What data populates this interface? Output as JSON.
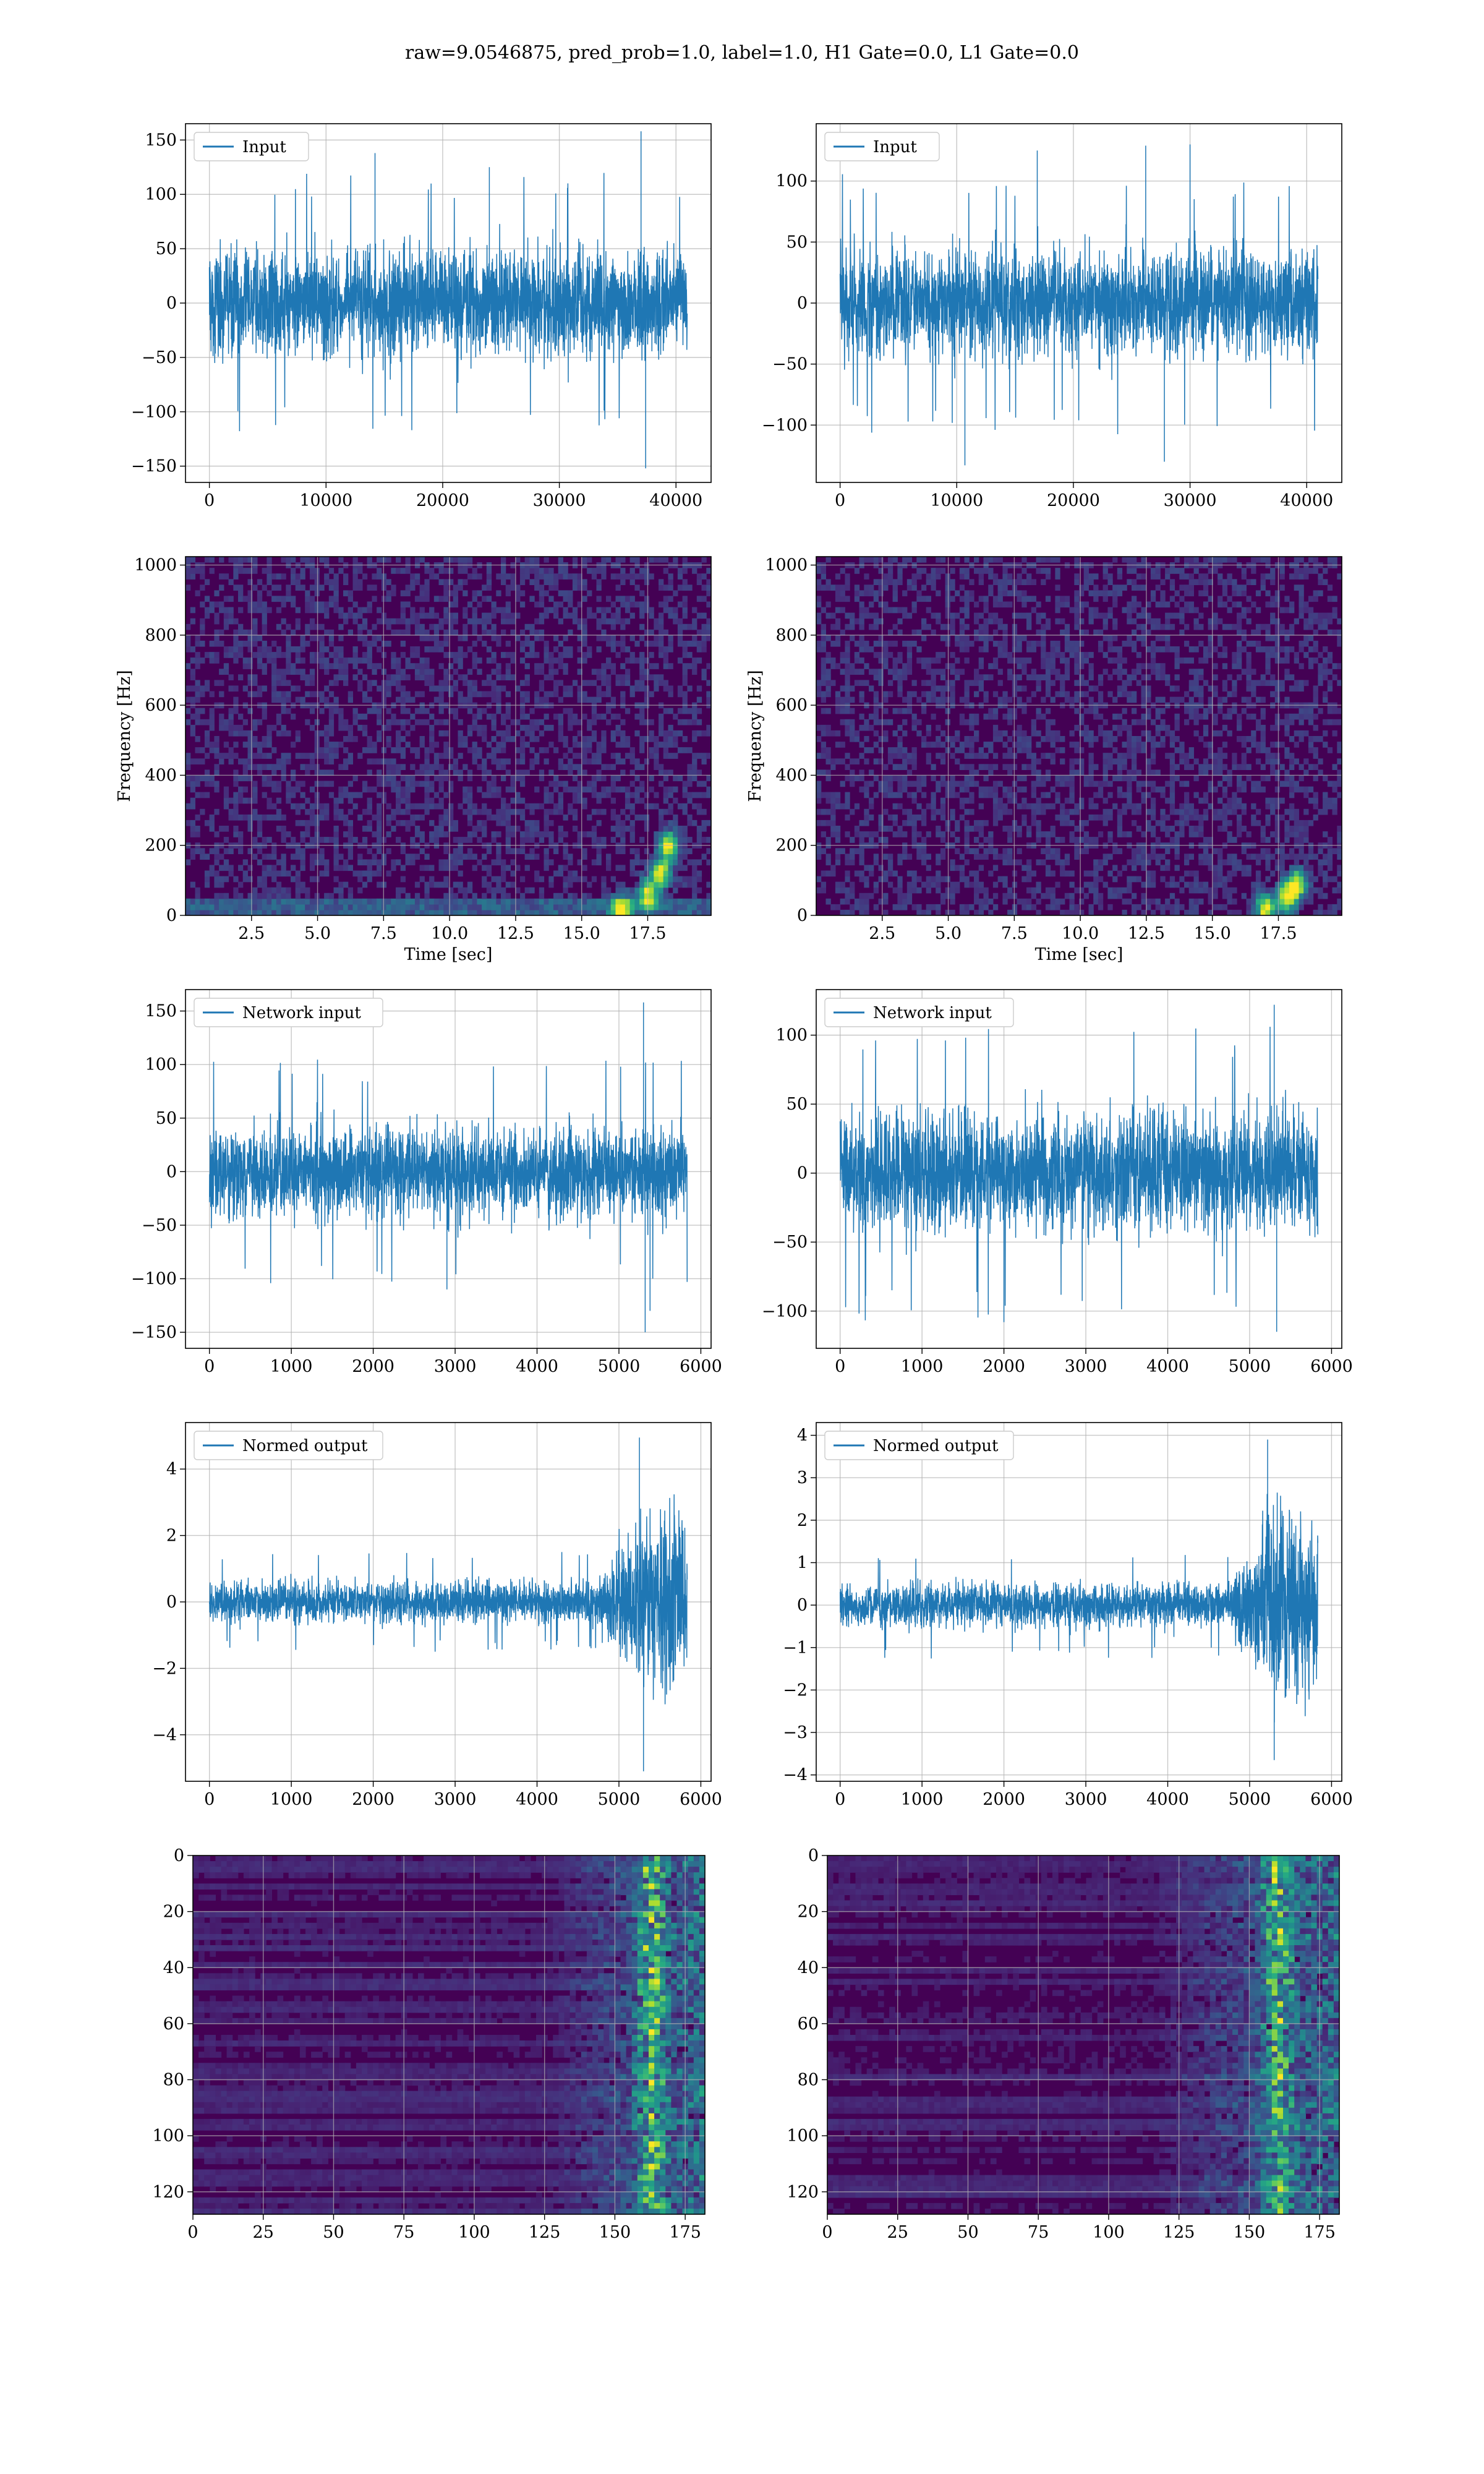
{
  "suptitle": "raw=9.0546875, pred_prob=1.0, label=1.0, H1 Gate=0.0, L1 Gate=0.0",
  "colors": {
    "line": "#1f77b4",
    "grid": "#b0b0b0",
    "viridis_dark": "#440154"
  },
  "chart_data": [
    {
      "id": "input-h1",
      "type": "line",
      "legend": "Input",
      "legend_position": "top-left",
      "grid": true,
      "xlim": [
        -2048,
        43008
      ],
      "ylim": [
        -165,
        165
      ],
      "xticks": [
        0,
        10000,
        20000,
        30000,
        40000
      ],
      "yticks": [
        -150,
        -100,
        -50,
        0,
        50,
        100,
        150
      ],
      "xticklabels": [
        "0",
        "10000",
        "20000",
        "30000",
        "40000"
      ],
      "yticklabels": [
        "−150",
        "−100",
        "−50",
        "0",
        "50",
        "100",
        "150"
      ],
      "series": [
        {
          "x_range": [
            0,
            40960
          ],
          "band": [
            -80,
            80
          ],
          "spikes": [
            [
              14200,
              138
            ],
            [
              37000,
              158
            ],
            [
              37400,
              -152
            ],
            [
              24000,
              125
            ]
          ]
        }
      ]
    },
    {
      "id": "input-l1",
      "type": "line",
      "legend": "Input",
      "legend_position": "top-left",
      "grid": true,
      "xlim": [
        -2048,
        43008
      ],
      "ylim": [
        -147,
        147
      ],
      "xticks": [
        0,
        10000,
        20000,
        30000,
        40000
      ],
      "yticks": [
        -100,
        -50,
        0,
        50,
        100
      ],
      "xticklabels": [
        "0",
        "10000",
        "20000",
        "30000",
        "40000"
      ],
      "yticklabels": [
        "−100",
        "−50",
        "0",
        "50",
        "100"
      ],
      "series": [
        {
          "x_range": [
            0,
            40960
          ],
          "band": [
            -72,
            72
          ],
          "spikes": [
            [
              10700,
              -133
            ],
            [
              26200,
              129
            ],
            [
              27800,
              -130
            ],
            [
              30000,
              130
            ],
            [
              16900,
              125
            ]
          ]
        }
      ]
    },
    {
      "id": "spec-h1",
      "type": "heatmap",
      "colormap": "viridis",
      "grid": true,
      "xlim": [
        0,
        19.9
      ],
      "ylim": [
        0,
        1024
      ],
      "xticks": [
        2.5,
        5.0,
        7.5,
        10.0,
        12.5,
        15.0,
        17.5
      ],
      "yticks": [
        0,
        200,
        400,
        600,
        800,
        1000
      ],
      "xticklabels": [
        "2.5",
        "5.0",
        "7.5",
        "10.0",
        "12.5",
        "15.0",
        "17.5"
      ],
      "yticklabels": [
        "0",
        "200",
        "400",
        "600",
        "800",
        "1000"
      ],
      "xlabel": "Time [sec]",
      "ylabel": "Frequency [Hz]",
      "features": {
        "low_band": [
          0,
          50
        ],
        "chirp": [
          [
            16.5,
            20
          ],
          [
            17.5,
            60
          ],
          [
            18.0,
            120
          ],
          [
            18.3,
            200
          ]
        ]
      }
    },
    {
      "id": "spec-l1",
      "type": "heatmap",
      "colormap": "viridis",
      "grid": true,
      "xlim": [
        0,
        19.9
      ],
      "ylim": [
        0,
        1024
      ],
      "xticks": [
        2.5,
        5.0,
        7.5,
        10.0,
        12.5,
        15.0,
        17.5
      ],
      "yticks": [
        0,
        200,
        400,
        600,
        800,
        1000
      ],
      "xticklabels": [
        "2.5",
        "5.0",
        "7.5",
        "10.0",
        "12.5",
        "15.0",
        "17.5"
      ],
      "yticklabels": [
        "0",
        "200",
        "400",
        "600",
        "800",
        "1000"
      ],
      "xlabel": "Time [sec]",
      "ylabel": "Frequency [Hz]",
      "features": {
        "low_band": [],
        "chirp": [
          [
            17.0,
            20
          ],
          [
            17.8,
            50
          ],
          [
            18.2,
            90
          ]
        ]
      }
    },
    {
      "id": "net-h1",
      "type": "line",
      "legend": "Network input",
      "legend_position": "top-left",
      "grid": true,
      "xlim": [
        -292,
        6125
      ],
      "ylim": [
        -165,
        170
      ],
      "xticks": [
        0,
        1000,
        2000,
        3000,
        4000,
        5000,
        6000
      ],
      "yticks": [
        -150,
        -100,
        -50,
        0,
        50,
        100,
        150
      ],
      "xticklabels": [
        "0",
        "1000",
        "2000",
        "3000",
        "4000",
        "5000",
        "6000"
      ],
      "yticklabels": [
        "−150",
        "−100",
        "−50",
        "0",
        "50",
        "100",
        "150"
      ],
      "series": [
        {
          "x_range": [
            0,
            5833
          ],
          "band": [
            -70,
            70
          ],
          "spikes": [
            [
              5300,
              158
            ],
            [
              5320,
              -150
            ],
            [
              5380,
              -130
            ],
            [
              2900,
              -110
            ]
          ]
        }
      ]
    },
    {
      "id": "net-l1",
      "type": "line",
      "legend": "Network input",
      "legend_position": "top-left",
      "grid": true,
      "xlim": [
        -292,
        6125
      ],
      "ylim": [
        -127,
        133
      ],
      "xticks": [
        0,
        1000,
        2000,
        3000,
        4000,
        5000,
        6000
      ],
      "yticks": [
        -100,
        -50,
        0,
        50,
        100
      ],
      "xticklabels": [
        "0",
        "1000",
        "2000",
        "3000",
        "4000",
        "5000",
        "6000"
      ],
      "yticklabels": [
        "−100",
        "−50",
        "0",
        "50",
        "100"
      ],
      "series": [
        {
          "x_range": [
            0,
            5833
          ],
          "band": [
            -72,
            72
          ],
          "spikes": [
            [
              5300,
              122
            ],
            [
              5330,
              -115
            ],
            [
              2000,
              -108
            ]
          ]
        }
      ]
    },
    {
      "id": "norm-h1",
      "type": "line",
      "legend": "Normed output",
      "legend_position": "top-left",
      "grid": true,
      "xlim": [
        -292,
        6125
      ],
      "ylim": [
        -5.4,
        5.4
      ],
      "xticks": [
        0,
        1000,
        2000,
        3000,
        4000,
        5000,
        6000
      ],
      "yticks": [
        -4,
        -2,
        0,
        2,
        4
      ],
      "xticklabels": [
        "0",
        "1000",
        "2000",
        "3000",
        "4000",
        "5000",
        "6000"
      ],
      "yticklabels": [
        "−4",
        "−2",
        "0",
        "2",
        "4"
      ],
      "series": [
        {
          "x_range": [
            0,
            5833
          ],
          "band": [
            -1.0,
            1.0
          ],
          "burst": {
            "start": 4750,
            "end": 5833,
            "amp": 3.0
          },
          "spikes": [
            [
              5250,
              4.95
            ],
            [
              5300,
              -5.1
            ]
          ]
        }
      ]
    },
    {
      "id": "norm-l1",
      "type": "line",
      "legend": "Normed output",
      "legend_position": "top-left",
      "grid": true,
      "xlim": [
        -292,
        6125
      ],
      "ylim": [
        -4.15,
        4.3
      ],
      "xticks": [
        0,
        1000,
        2000,
        3000,
        4000,
        5000,
        6000
      ],
      "yticks": [
        -4,
        -3,
        -2,
        -1,
        0,
        1,
        2,
        3,
        4
      ],
      "xticklabels": [
        "0",
        "1000",
        "2000",
        "3000",
        "4000",
        "5000",
        "6000"
      ],
      "yticklabels": [
        "−4",
        "−3",
        "−2",
        "−1",
        "0",
        "1",
        "2",
        "3",
        "4"
      ],
      "series": [
        {
          "x_range": [
            0,
            5833
          ],
          "band": [
            -0.85,
            0.85
          ],
          "burst": {
            "start": 4750,
            "end": 5833,
            "amp": 2.4
          },
          "spikes": [
            [
              5220,
              3.9
            ],
            [
              5300,
              -3.65
            ]
          ]
        }
      ]
    },
    {
      "id": "feat-h1",
      "type": "heatmap",
      "colormap": "viridis",
      "grid": true,
      "xlim": [
        0,
        182
      ],
      "ylim": [
        128,
        0
      ],
      "xticks": [
        0,
        25,
        50,
        75,
        100,
        125,
        150,
        175
      ],
      "yticks": [
        0,
        20,
        40,
        60,
        80,
        100,
        120
      ],
      "xticklabels": [
        "0",
        "25",
        "50",
        "75",
        "100",
        "125",
        "150",
        "175"
      ],
      "yticklabels": [
        "0",
        "20",
        "40",
        "60",
        "80",
        "100",
        "120"
      ],
      "features": {
        "active_from": 125,
        "bright_column": 163
      }
    },
    {
      "id": "feat-l1",
      "type": "heatmap",
      "colormap": "viridis",
      "grid": true,
      "xlim": [
        0,
        182
      ],
      "ylim": [
        128,
        0
      ],
      "xticks": [
        0,
        25,
        50,
        75,
        100,
        125,
        150,
        175
      ],
      "yticks": [
        0,
        20,
        40,
        60,
        80,
        100,
        120
      ],
      "xticklabels": [
        "0",
        "25",
        "50",
        "75",
        "100",
        "125",
        "150",
        "175"
      ],
      "yticklabels": [
        "0",
        "20",
        "40",
        "60",
        "80",
        "100",
        "120"
      ],
      "features": {
        "active_from": 115,
        "bright_column": 160
      }
    }
  ]
}
